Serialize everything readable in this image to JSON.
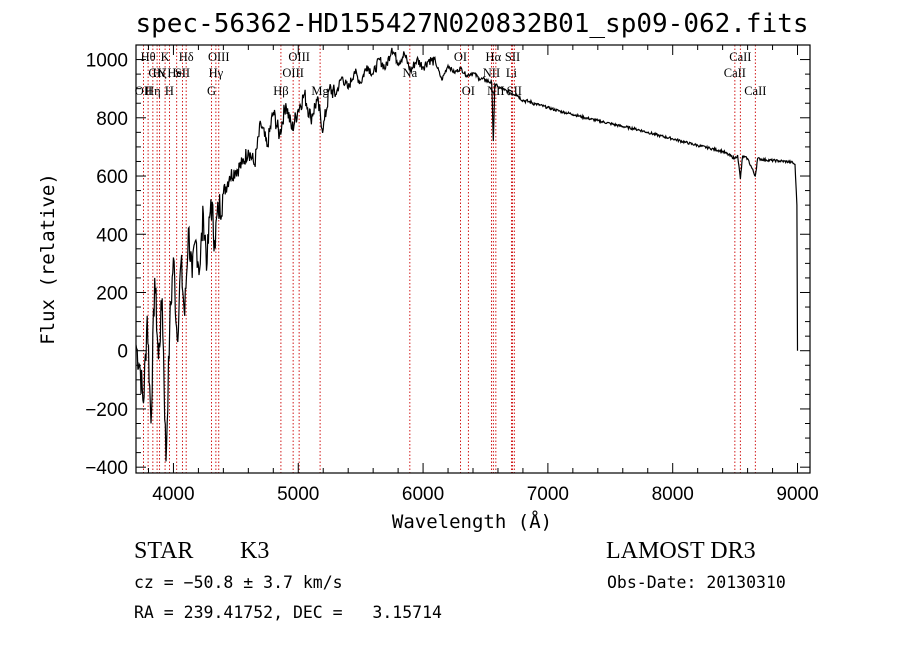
{
  "chart_data": {
    "type": "line",
    "title": "spec-56362-HD155427N020832B01_sp09-062.fits",
    "xlabel": "Wavelength (Å)",
    "ylabel": "Flux (relative)",
    "xlim": [
      3700,
      9100
    ],
    "ylim": [
      -420,
      1050
    ],
    "xticks": [
      4000,
      5000,
      6000,
      7000,
      8000,
      9000
    ],
    "yticks": [
      -400,
      -200,
      0,
      200,
      400,
      600,
      800,
      1000
    ],
    "x_tick_labels": [
      "4000",
      "5000",
      "6000",
      "7000",
      "8000",
      "9000"
    ],
    "y_tick_labels": [
      "−400",
      "−200",
      "0",
      "200",
      "400",
      "600",
      "800",
      "1000"
    ],
    "series": [
      {
        "name": "flux",
        "points": [
          [
            3700,
            20
          ],
          [
            3730,
            -50
          ],
          [
            3760,
            -180
          ],
          [
            3790,
            120
          ],
          [
            3820,
            -250
          ],
          [
            3850,
            250
          ],
          [
            3880,
            -30
          ],
          [
            3910,
            180
          ],
          [
            3940,
            -380
          ],
          [
            3970,
            80
          ],
          [
            4000,
            320
          ],
          [
            4030,
            40
          ],
          [
            4060,
            300
          ],
          [
            4090,
            120
          ],
          [
            4120,
            420
          ],
          [
            4150,
            250
          ],
          [
            4180,
            380
          ],
          [
            4210,
            280
          ],
          [
            4240,
            470
          ],
          [
            4270,
            300
          ],
          [
            4300,
            520
          ],
          [
            4330,
            380
          ],
          [
            4360,
            480
          ],
          [
            4400,
            540
          ],
          [
            4450,
            600
          ],
          [
            4500,
            620
          ],
          [
            4550,
            640
          ],
          [
            4600,
            690
          ],
          [
            4650,
            640
          ],
          [
            4700,
            780
          ],
          [
            4750,
            700
          ],
          [
            4800,
            820
          ],
          [
            4850,
            740
          ],
          [
            4900,
            850
          ],
          [
            4950,
            760
          ],
          [
            5000,
            830
          ],
          [
            5050,
            880
          ],
          [
            5100,
            800
          ],
          [
            5150,
            860
          ],
          [
            5200,
            760
          ],
          [
            5250,
            900
          ],
          [
            5300,
            880
          ],
          [
            5350,
            940
          ],
          [
            5400,
            900
          ],
          [
            5450,
            960
          ],
          [
            5500,
            920
          ],
          [
            5550,
            980
          ],
          [
            5600,
            950
          ],
          [
            5650,
            1000
          ],
          [
            5700,
            970
          ],
          [
            5750,
            1040
          ],
          [
            5800,
            990
          ],
          [
            5850,
            1020
          ],
          [
            5900,
            960
          ],
          [
            5950,
            1000
          ],
          [
            6000,
            975
          ],
          [
            6050,
            1000
          ],
          [
            6100,
            990
          ],
          [
            6150,
            930
          ],
          [
            6200,
            980
          ],
          [
            6250,
            955
          ],
          [
            6300,
            970
          ],
          [
            6350,
            945
          ],
          [
            6400,
            955
          ],
          [
            6450,
            935
          ],
          [
            6500,
            930
          ],
          [
            6550,
            920
          ],
          [
            6563,
            720
          ],
          [
            6575,
            915
          ],
          [
            6600,
            905
          ],
          [
            6650,
            895
          ],
          [
            6700,
            885
          ],
          [
            6750,
            880
          ],
          [
            6800,
            860
          ],
          [
            6850,
            855
          ],
          [
            6900,
            848
          ],
          [
            7000,
            835
          ],
          [
            7100,
            822
          ],
          [
            7200,
            812
          ],
          [
            7300,
            800
          ],
          [
            7400,
            790
          ],
          [
            7500,
            780
          ],
          [
            7600,
            770
          ],
          [
            7700,
            762
          ],
          [
            7800,
            750
          ],
          [
            7900,
            738
          ],
          [
            8000,
            728
          ],
          [
            8100,
            716
          ],
          [
            8200,
            705
          ],
          [
            8300,
            695
          ],
          [
            8400,
            685
          ],
          [
            8498,
            660
          ],
          [
            8520,
            672
          ],
          [
            8542,
            590
          ],
          [
            8560,
            668
          ],
          [
            8600,
            660
          ],
          [
            8662,
            600
          ],
          [
            8680,
            660
          ],
          [
            8750,
            655
          ],
          [
            8850,
            652
          ],
          [
            8950,
            648
          ],
          [
            8980,
            640
          ],
          [
            8995,
            500
          ],
          [
            9000,
            0
          ]
        ]
      }
    ],
    "spectral_lines": [
      {
        "wl": 3760,
        "label": "OII",
        "row": 3
      },
      {
        "wl": 3797,
        "label": "Hθ",
        "row": 1
      },
      {
        "wl": 3835,
        "label": "Hη",
        "row": 3
      },
      {
        "wl": 3869,
        "label": "CN",
        "row": 2
      },
      {
        "wl": 3889,
        "label": "Hζ",
        "row": 2
      },
      {
        "wl": 3933,
        "label": "K",
        "row": 1
      },
      {
        "wl": 3968,
        "label": "H",
        "row": 3
      },
      {
        "wl": 4026,
        "label": "HeI",
        "row": 2
      },
      {
        "wl": 4072,
        "label": "SII",
        "row": 2
      },
      {
        "wl": 4102,
        "label": "Hδ",
        "row": 1
      },
      {
        "wl": 4305,
        "label": "G",
        "row": 3
      },
      {
        "wl": 4340,
        "label": "Hγ",
        "row": 2
      },
      {
        "wl": 4363,
        "label": "OIII",
        "row": 1
      },
      {
        "wl": 4861,
        "label": "Hβ",
        "row": 3
      },
      {
        "wl": 4959,
        "label": "OIII",
        "row": 2
      },
      {
        "wl": 5007,
        "label": "OIII",
        "row": 1
      },
      {
        "wl": 5175,
        "label": "Mg",
        "row": 3
      },
      {
        "wl": 5894,
        "label": "Na",
        "row": 2
      },
      {
        "wl": 6300,
        "label": "OI",
        "row": 1
      },
      {
        "wl": 6363,
        "label": "OI",
        "row": 3
      },
      {
        "wl": 6548,
        "label": "NII",
        "row": 2
      },
      {
        "wl": 6563,
        "label": "Hα",
        "row": 1
      },
      {
        "wl": 6583,
        "label": "NII",
        "row": 3
      },
      {
        "wl": 6708,
        "label": "Li",
        "row": 2
      },
      {
        "wl": 6717,
        "label": "SII",
        "row": 1
      },
      {
        "wl": 6731,
        "label": "SII",
        "row": 3
      },
      {
        "wl": 8498,
        "label": "CaII",
        "row": 2
      },
      {
        "wl": 8542,
        "label": "CaII",
        "row": 1
      },
      {
        "wl": 8662,
        "label": "CaII",
        "row": 3
      }
    ]
  },
  "info": {
    "class": "STAR",
    "subclass": "K3",
    "survey": "LAMOST DR3",
    "cz": "cz = −50.8 ± 3.7 km/s",
    "obs_date": "Obs-Date: 20130310",
    "coords": "RA = 239.41752, DEC =   3.15714"
  },
  "colors": {
    "spectrum": "#000000",
    "line_marker": "#cc0000",
    "axis": "#000000"
  }
}
